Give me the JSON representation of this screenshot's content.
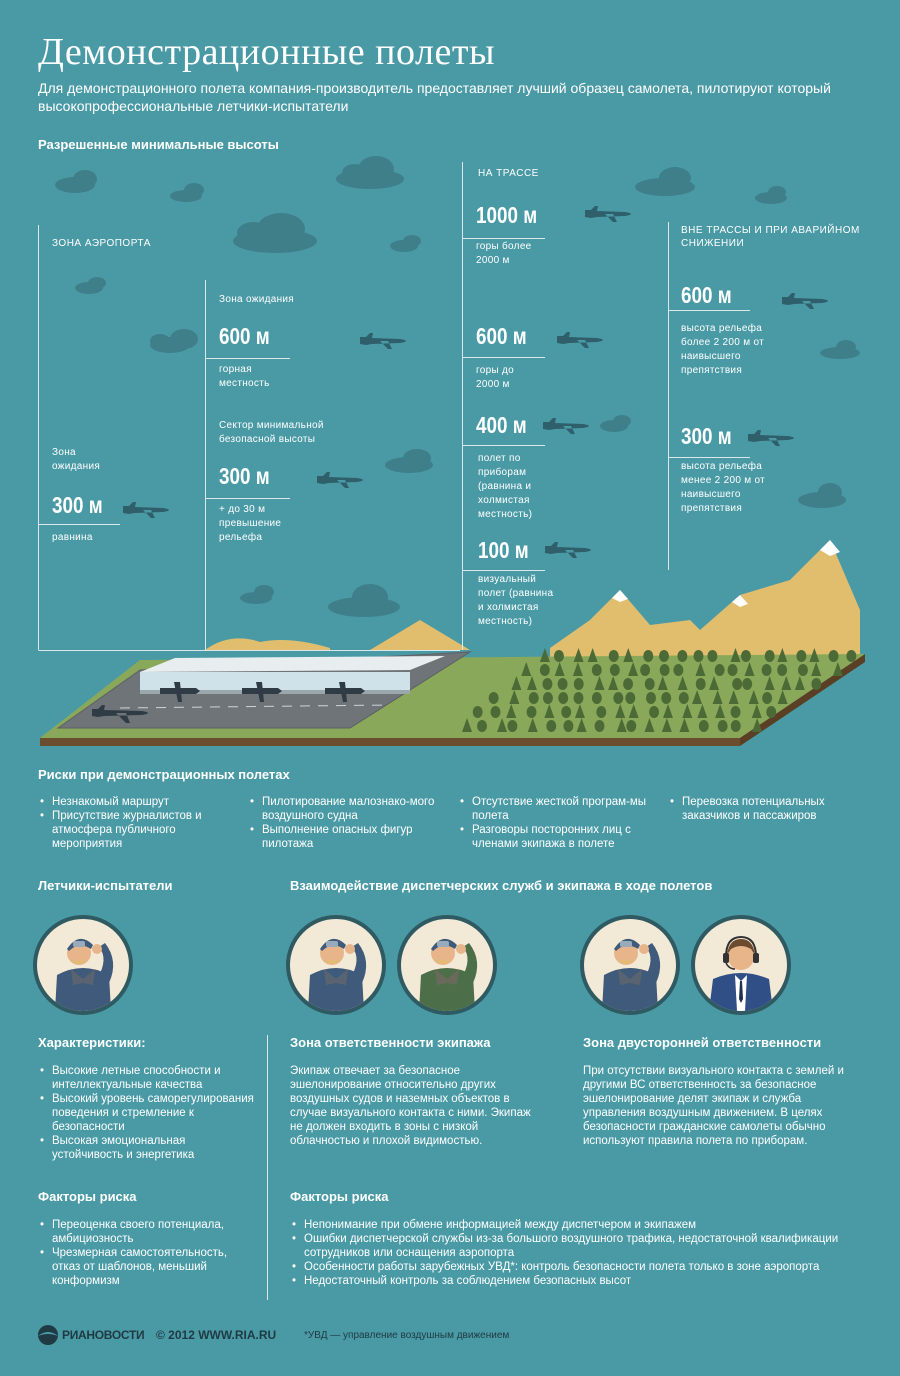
{
  "header": {
    "title": "Демонстрационные полеты",
    "subtitle": "Для демонстрационного полета компания-производитель предоставляет лучший образец самолета, пилотируют который высокопрофессиональные летчики-испытатели"
  },
  "altitudes": {
    "heading": "Разрешенные минимальные высоты",
    "airport_zone": {
      "label": "ЗОНА АЭРОПОРТА",
      "holding": {
        "title": "Зона ожидания",
        "value": "300 м",
        "note": "равнина"
      },
      "holding_zone": {
        "title": "Зона ожидания",
        "value": "600 м",
        "note": "горная местность"
      },
      "msa_sector": {
        "title": "Сектор минимальной безопасной высоты",
        "value": "300 м",
        "note": "+ до 30 м превышение рельефа"
      }
    },
    "route": {
      "label": "НА ТРАССЕ",
      "items": [
        {
          "value": "1000 м",
          "note": "горы более 2000 м"
        },
        {
          "value": "600 м",
          "note": "горы до 2000 м"
        },
        {
          "value": "400 м",
          "note": "полет по приборам (равнина и холмистая местность)"
        },
        {
          "value": "100 м",
          "note": "визуальный полет (равнина и холмистая местность)"
        }
      ]
    },
    "off_route": {
      "label": "ВНЕ ТРАССЫ И ПРИ АВАРИЙНОМ СНИЖЕНИИ",
      "items": [
        {
          "value": "600 м",
          "note": "высота рельефа более 2 200 м от наивысшего препятствия"
        },
        {
          "value": "300 м",
          "note": "высота рельефа менее 2 200 м от наивысшего препятствия"
        }
      ]
    }
  },
  "risks": {
    "heading": "Риски при демонстрационных полетах",
    "col1": [
      "Незнакомый маршрут",
      "Присутствие журналистов и атмосфера публичного мероприятия"
    ],
    "col2": [
      "Пилотирование малознако-мого воздушного судна",
      "Выполнение опасных фигур пилотажа"
    ],
    "col3": [
      "Отсутствие жесткой програм-мы полета",
      "Разговоры посторонних лиц с членами экипажа в полете"
    ],
    "col4": [
      "Перевозка потенциальных заказчиков и пассажиров"
    ]
  },
  "pilots": {
    "heading": "Летчики-испытатели",
    "char_heading": "Характеристики:",
    "chars": [
      "Высокие летные способности и интеллектуальные качества",
      "Высокий уровень саморегулирования поведения и стремление к безопасности",
      "Высокая эмоциональная устойчивость и энергетика"
    ],
    "risk_heading": "Факторы риска",
    "risks": [
      "Переоценка своего потенциала, амбициозность",
      "Чрезмерная самостоятельность, отказ от шаблонов, меньший конформизм"
    ]
  },
  "interaction": {
    "heading": "Взаимодействие диспетчерских служб и экипажа в ходе полетов",
    "crew_heading": "Зона ответственности экипажа",
    "crew_text": "Экипаж отвечает за безопасное эшелонирование относительно других воздушных судов и наземных объектов в случае визуального контакта с ними. Экипаж не должен входить в зоны с низкой облачностью и плохой видимостью.",
    "shared_heading": "Зона двусторонней ответственности",
    "shared_text": "При отсутствии визуального контакта с землей и другими ВС ответственность за безопасное эшелонирование делят экипаж и служба управления воздушным движением. В целях безопасности гражданские самолеты обычно используют правила полета по приборам.",
    "risk_heading": "Факторы риска",
    "risks": [
      "Непонимание при обмене информацией между диспетчером и экипажем",
      "Ошибки диспетчерской службы из-за большого воздушного трафика, недостаточной квалификации сотрудников или оснащения аэропорта",
      "Особенности работы зарубежных УВД*: контроль безопасности полета только в зоне аэропорта",
      "Недостаточный контроль за соблюдением безопасных высот"
    ]
  },
  "footer": {
    "logo_text": "РИАНОВОСТИ",
    "copyright": "© 2012 WWW.RIA.RU",
    "footnote": "*УВД — управление воздушным движением"
  },
  "colors": {
    "background": "#4a9aa6",
    "cloud": "#3f7f8a",
    "plane": "#2f5f6b",
    "mountain": "#e1bd6e",
    "grass": "#7f9a4a",
    "tree": "#4c6a36",
    "pilot_jacket": "#3f5a7a",
    "pilot_green": "#4c6e48",
    "avatar_bg": "#f2ead6"
  }
}
